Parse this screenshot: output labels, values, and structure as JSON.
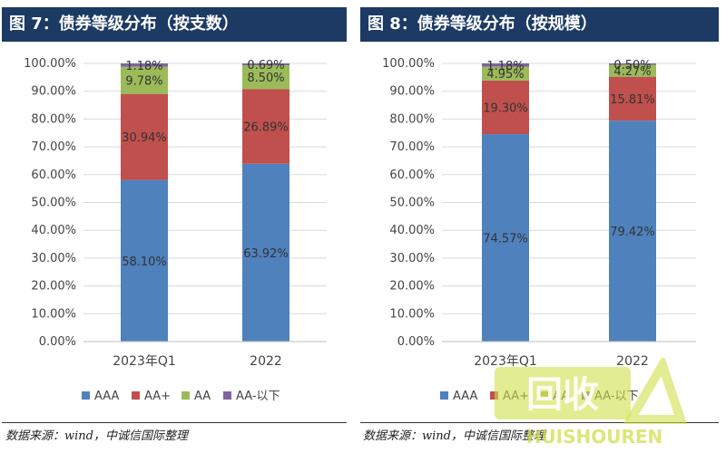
{
  "colors": {
    "AAA": "#4f81bd",
    "AA+": "#c0504d",
    "AA": "#9bbb59",
    "AA-below": "#8064a2",
    "header_bg": "#1c3a64",
    "grid": "#d9d9d9"
  },
  "source_text": "数据来源：wind，中诚信国际整理",
  "watermark": {
    "logo": "回收",
    "text": "HUISHOUREN"
  },
  "chart_data": [
    {
      "type": "bar",
      "stacked": true,
      "title": "图 7：债券等级分布（按支数）",
      "categories": [
        "2023年Q1",
        "2022"
      ],
      "series": [
        {
          "name": "AAA",
          "values": [
            58.1,
            63.92
          ],
          "labels": [
            "58.10%",
            "63.92%"
          ]
        },
        {
          "name": "AA+",
          "values": [
            30.94,
            26.89
          ],
          "labels": [
            "30.94%",
            "26.89%"
          ]
        },
        {
          "name": "AA",
          "values": [
            9.78,
            8.5
          ],
          "labels": [
            "9.78%",
            "8.50%"
          ]
        },
        {
          "name": "AA-以下",
          "values": [
            1.18,
            0.69
          ],
          "labels": [
            "1.18%",
            "0.69%"
          ]
        }
      ],
      "yticks": [
        "0.00%",
        "10.00%",
        "20.00%",
        "30.00%",
        "40.00%",
        "50.00%",
        "60.00%",
        "70.00%",
        "80.00%",
        "90.00%",
        "100.00%"
      ],
      "ylim": [
        0,
        100
      ],
      "grid": true,
      "legend": "bottom"
    },
    {
      "type": "bar",
      "stacked": true,
      "title": "图 8：债券等级分布（按规模）",
      "categories": [
        "2023年Q1",
        "2022"
      ],
      "series": [
        {
          "name": "AAA",
          "values": [
            74.57,
            79.42
          ],
          "labels": [
            "74.57%",
            "79.42%"
          ]
        },
        {
          "name": "AA+",
          "values": [
            19.3,
            15.81
          ],
          "labels": [
            "19.30%",
            "15.81%"
          ]
        },
        {
          "name": "AA",
          "values": [
            4.95,
            4.27
          ],
          "labels": [
            "4.95%",
            "4.27%"
          ]
        },
        {
          "name": "AA-以下",
          "values": [
            1.18,
            0.5
          ],
          "labels": [
            "1.18%",
            "0.50%"
          ]
        }
      ],
      "yticks": [
        "0.00%",
        "10.00%",
        "20.00%",
        "30.00%",
        "40.00%",
        "50.00%",
        "60.00%",
        "70.00%",
        "80.00%",
        "90.00%",
        "100.00%"
      ],
      "ylim": [
        0,
        100
      ],
      "grid": true,
      "legend": "bottom"
    }
  ]
}
